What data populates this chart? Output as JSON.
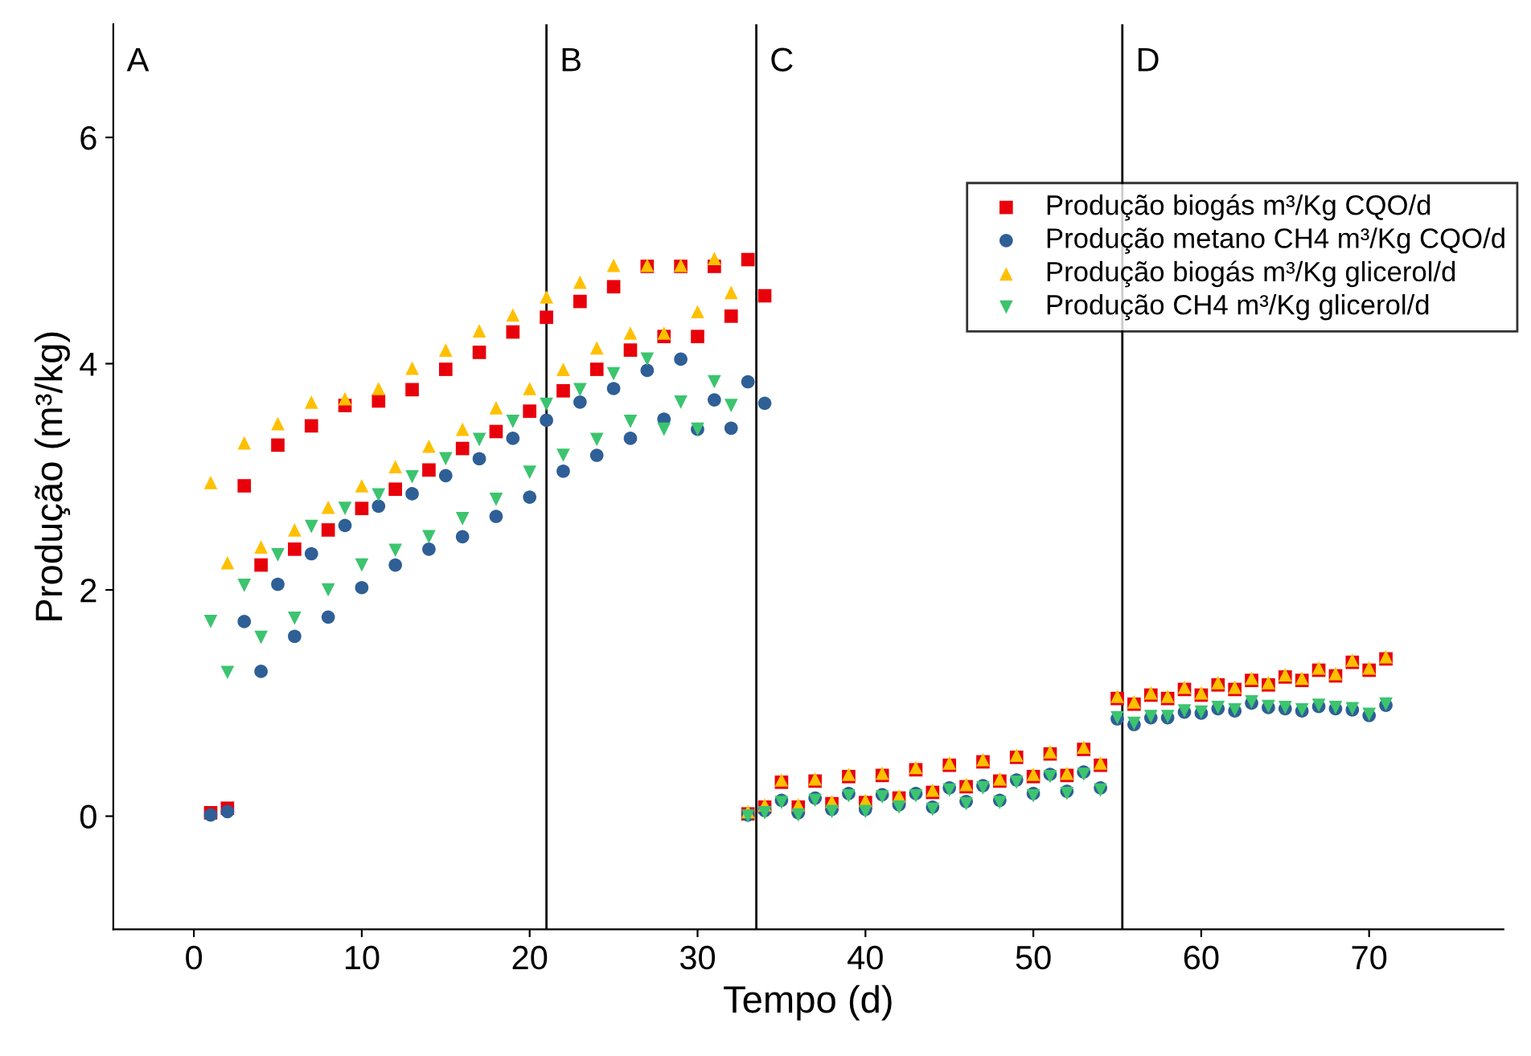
{
  "chart_data": {
    "type": "scatter",
    "xlabel": "Tempo (d)",
    "ylabel": "Produção (m³/kg)",
    "xlim": [
      -4.8,
      78
    ],
    "ylim": [
      -1,
      7
    ],
    "xticks": [
      0,
      10,
      20,
      30,
      40,
      50,
      60,
      70
    ],
    "yticks": [
      0,
      2,
      4,
      6
    ],
    "grid": false,
    "legend": "top right",
    "series": [
      {
        "name": "Produção biogás m³/Kg CQO/d",
        "color": "#e8000b",
        "marker": "square",
        "x": [
          1,
          2,
          3,
          4,
          5,
          6,
          7,
          8,
          9,
          10,
          11,
          12,
          13,
          14,
          15,
          16,
          17,
          18,
          19,
          20,
          21,
          22,
          23,
          24,
          25,
          26,
          27,
          28,
          29,
          30,
          31,
          32,
          33,
          34,
          33,
          34,
          35,
          36,
          37,
          38,
          39,
          40,
          41,
          42,
          43,
          44,
          45,
          46,
          47,
          48,
          49,
          50,
          51,
          52,
          53,
          54,
          55,
          56,
          57,
          58,
          59,
          60,
          61,
          62,
          63,
          64,
          65,
          66,
          67,
          68,
          69,
          70,
          71
        ],
        "values": [
          0.03,
          0.07,
          2.92,
          2.22,
          3.28,
          2.36,
          3.45,
          2.53,
          3.63,
          2.72,
          3.67,
          2.89,
          3.77,
          3.06,
          3.95,
          3.25,
          4.1,
          3.4,
          4.28,
          3.58,
          4.41,
          3.76,
          4.55,
          3.95,
          4.68,
          4.12,
          4.86,
          4.24,
          4.86,
          4.24,
          4.86,
          4.42,
          4.92,
          4.6,
          0.02,
          0.08,
          0.3,
          0.08,
          0.31,
          0.11,
          0.35,
          0.12,
          0.36,
          0.16,
          0.41,
          0.21,
          0.45,
          0.26,
          0.48,
          0.31,
          0.52,
          0.35,
          0.55,
          0.36,
          0.59,
          0.45,
          1.04,
          0.99,
          1.07,
          1.04,
          1.12,
          1.07,
          1.16,
          1.12,
          1.2,
          1.16,
          1.23,
          1.2,
          1.29,
          1.24,
          1.36,
          1.29,
          1.39
        ]
      },
      {
        "name": "Produção metano CH4 m³/Kg CQO/d",
        "color": "#2e5f96",
        "marker": "circle",
        "x": [
          1,
          2,
          3,
          4,
          5,
          6,
          7,
          8,
          9,
          10,
          11,
          12,
          13,
          14,
          15,
          16,
          17,
          18,
          19,
          20,
          21,
          22,
          23,
          24,
          25,
          26,
          27,
          28,
          29,
          30,
          31,
          32,
          33,
          34,
          33,
          34,
          35,
          36,
          37,
          38,
          39,
          40,
          41,
          42,
          43,
          44,
          45,
          46,
          47,
          48,
          49,
          50,
          51,
          52,
          53,
          54,
          55,
          56,
          57,
          58,
          59,
          60,
          61,
          62,
          63,
          64,
          65,
          66,
          67,
          68,
          69,
          70,
          71
        ],
        "values": [
          0.01,
          0.04,
          1.72,
          1.28,
          2.05,
          1.59,
          2.32,
          1.76,
          2.57,
          2.02,
          2.74,
          2.22,
          2.85,
          2.36,
          3.01,
          2.47,
          3.16,
          2.65,
          3.34,
          2.82,
          3.5,
          3.05,
          3.66,
          3.19,
          3.78,
          3.34,
          3.94,
          3.51,
          4.04,
          3.42,
          3.68,
          3.43,
          3.84,
          3.65,
          0.01,
          0.05,
          0.14,
          0.03,
          0.16,
          0.06,
          0.2,
          0.06,
          0.19,
          0.1,
          0.2,
          0.08,
          0.25,
          0.13,
          0.27,
          0.14,
          0.32,
          0.2,
          0.37,
          0.22,
          0.39,
          0.25,
          0.86,
          0.81,
          0.87,
          0.87,
          0.92,
          0.91,
          0.95,
          0.93,
          1.0,
          0.96,
          0.95,
          0.93,
          0.97,
          0.95,
          0.94,
          0.89,
          0.98
        ]
      },
      {
        "name": "Produção biogás m³/Kg glicerol/d",
        "color": "#ffc000",
        "marker": "triangle",
        "x": [
          1,
          2,
          3,
          4,
          5,
          6,
          7,
          8,
          9,
          10,
          11,
          12,
          13,
          14,
          15,
          16,
          17,
          18,
          19,
          20,
          21,
          22,
          23,
          24,
          25,
          26,
          27,
          28,
          29,
          30,
          31,
          32,
          33,
          34,
          35,
          36,
          37,
          38,
          39,
          40,
          41,
          42,
          43,
          44,
          45,
          46,
          47,
          48,
          49,
          50,
          51,
          52,
          53,
          54,
          55,
          56,
          57,
          58,
          59,
          60,
          61,
          62,
          63,
          64,
          65,
          66,
          67,
          68,
          69,
          70,
          71
        ],
        "values": [
          2.95,
          2.24,
          3.3,
          2.38,
          3.47,
          2.53,
          3.66,
          2.73,
          3.69,
          2.92,
          3.78,
          3.09,
          3.96,
          3.27,
          4.12,
          3.42,
          4.29,
          3.61,
          4.43,
          3.78,
          4.59,
          3.95,
          4.72,
          4.14,
          4.87,
          4.27,
          4.87,
          4.27,
          4.87,
          4.46,
          4.93,
          4.63,
          0.04,
          0.1,
          0.32,
          0.1,
          0.33,
          0.13,
          0.37,
          0.14,
          0.38,
          0.18,
          0.43,
          0.23,
          0.47,
          0.28,
          0.5,
          0.33,
          0.54,
          0.37,
          0.57,
          0.38,
          0.61,
          0.47,
          1.06,
          1.01,
          1.09,
          1.06,
          1.14,
          1.09,
          1.18,
          1.14,
          1.22,
          1.18,
          1.25,
          1.22,
          1.31,
          1.26,
          1.38,
          1.31,
          1.41
        ]
      },
      {
        "name": "Produção CH4 m³/Kg glicerol/d",
        "color": "#3cc46f",
        "marker": "triangle_down",
        "x": [
          1,
          2,
          3,
          4,
          5,
          6,
          7,
          8,
          9,
          10,
          11,
          12,
          13,
          14,
          15,
          16,
          17,
          18,
          19,
          20,
          21,
          22,
          23,
          24,
          25,
          26,
          27,
          28,
          29,
          30,
          31,
          32,
          33,
          34,
          35,
          36,
          37,
          38,
          39,
          40,
          41,
          42,
          43,
          44,
          45,
          46,
          47,
          48,
          49,
          50,
          51,
          52,
          53,
          54,
          55,
          56,
          57,
          58,
          59,
          60,
          61,
          62,
          63,
          64,
          65,
          66,
          67,
          68,
          69,
          70,
          71
        ],
        "values": [
          1.72,
          1.27,
          2.04,
          1.58,
          2.31,
          1.75,
          2.56,
          2.0,
          2.72,
          2.22,
          2.84,
          2.35,
          3.0,
          2.47,
          3.16,
          2.63,
          3.33,
          2.8,
          3.49,
          3.04,
          3.64,
          3.19,
          3.77,
          3.33,
          3.91,
          3.49,
          4.04,
          3.42,
          3.66,
          3.42,
          3.84,
          3.63,
          0.0,
          0.03,
          0.12,
          0.01,
          0.14,
          0.04,
          0.18,
          0.04,
          0.17,
          0.08,
          0.18,
          0.06,
          0.23,
          0.11,
          0.25,
          0.12,
          0.3,
          0.18,
          0.35,
          0.2,
          0.37,
          0.23,
          0.87,
          0.82,
          0.88,
          0.88,
          0.93,
          0.92,
          0.96,
          0.94,
          1.01,
          0.97,
          0.96,
          0.94,
          0.98,
          0.96,
          0.95,
          0.9,
          0.99
        ]
      }
    ],
    "ref_lines": [
      {
        "axis": "x",
        "value": 21,
        "label": "B",
        "color": "#000000"
      },
      {
        "axis": "x",
        "value": 33.5,
        "label": "C",
        "color": "#000000"
      },
      {
        "axis": "x",
        "value": 55.3,
        "label": "D",
        "color": "#000000"
      }
    ],
    "annotations": [
      "A"
    ]
  }
}
